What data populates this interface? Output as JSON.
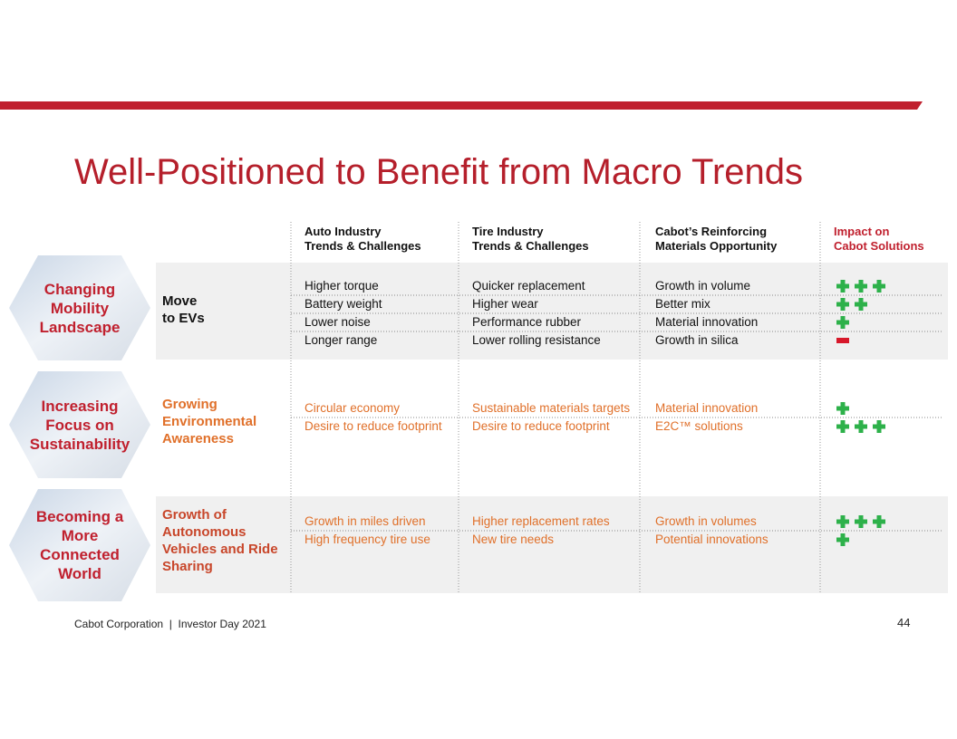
{
  "title": "Well-Positioned to Benefit from Macro Trends",
  "columns": [
    [
      "Auto Industry",
      "Trends & Challenges"
    ],
    [
      "Tire Industry",
      "Trends & Challenges"
    ],
    [
      "Cabot’s Reinforcing",
      "Materials Opportunity"
    ],
    [
      "Impact on",
      "Cabot Solutions"
    ]
  ],
  "sections": [
    {
      "theme": [
        "Changing",
        "Mobility",
        "Landscape"
      ],
      "group": [
        "Move",
        "to EVs"
      ],
      "rows": [
        {
          "cells": [
            "Higher torque",
            "Quicker replacement",
            "Growth in volume"
          ],
          "impact": 3
        },
        {
          "cells": [
            "Battery weight",
            "Higher wear",
            "Better mix"
          ],
          "impact": 2
        },
        {
          "cells": [
            "Lower noise",
            "Performance rubber",
            "Material innovation"
          ],
          "impact": 1
        },
        {
          "cells": [
            "Longer range",
            "Lower rolling resistance",
            "Growth in silica"
          ],
          "impact": -1
        }
      ]
    },
    {
      "theme": [
        "Increasing",
        "Focus on",
        "Sustainability"
      ],
      "group": [
        "Growing",
        "Environmental",
        "Awareness"
      ],
      "rows": [
        {
          "cells": [
            "Circular economy",
            "Sustainable materials targets",
            "Material innovation"
          ],
          "impact": 1
        },
        {
          "cells": [
            "Desire to reduce footprint",
            "Desire to reduce footprint",
            "E2C™ solutions"
          ],
          "impact": 3
        }
      ]
    },
    {
      "theme": [
        "Becoming a",
        "More",
        "Connected",
        "World"
      ],
      "group": [
        "Growth of",
        "Autonomous",
        "Vehicles and Ride",
        "Sharing"
      ],
      "rows": [
        {
          "cells": [
            "Growth in miles driven",
            "Higher replacement rates",
            "Growth in volumes"
          ],
          "impact": 3
        },
        {
          "cells": [
            "High frequency tire use",
            "New tire needs",
            "Potential innovations"
          ],
          "impact": 1
        }
      ]
    }
  ],
  "footer": {
    "text": "Cabot Corporation  |  Investor Day 2021",
    "page": "44"
  }
}
